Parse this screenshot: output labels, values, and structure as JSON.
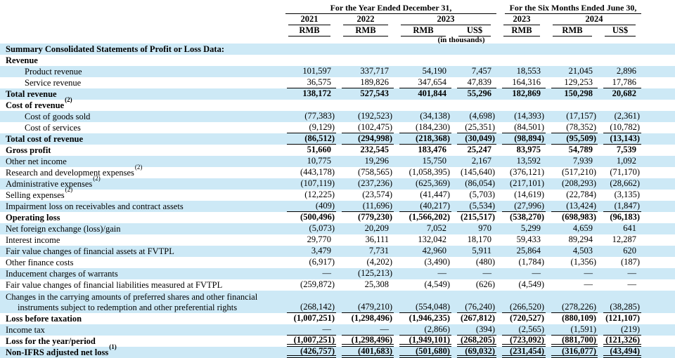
{
  "header": {
    "group1": "For the Year Ended December 31,",
    "group2": "For the Six Months Ended June 30,",
    "years": [
      "2021",
      "2022",
      "2023",
      "2023",
      "2024"
    ],
    "currencies": [
      "RMB",
      "RMB",
      "RMB",
      "US$",
      "RMB",
      "RMB",
      "US$"
    ],
    "units_note": "(in thousands)"
  },
  "colors": {
    "row_highlight": "#cde9f6",
    "rule_line": "#000000",
    "text": "#000000"
  },
  "rows": [
    {
      "label": "Summary Consolidated Statements of Profit or Loss Data:",
      "bold": true,
      "bg": "blue",
      "indent": 0,
      "underline": "none",
      "values": [
        "",
        "",
        "",
        "",
        "",
        "",
        ""
      ]
    },
    {
      "label": "Revenue",
      "bold": true,
      "bg": "white",
      "indent": 0,
      "underline": "none",
      "values": [
        "",
        "",
        "",
        "",
        "",
        "",
        ""
      ]
    },
    {
      "label": "Product revenue",
      "bold": false,
      "bg": "blue",
      "indent": 1,
      "underline": "none",
      "values": [
        "101,597",
        "337,717",
        "54,190",
        "7,457",
        "18,553",
        "21,045",
        "2,896"
      ]
    },
    {
      "label": "Service revenue",
      "bold": false,
      "bg": "white",
      "indent": 1,
      "underline": "single",
      "values": [
        "36,575",
        "189,826",
        "347,654",
        "47,839",
        "164,316",
        "129,253",
        "17,786"
      ]
    },
    {
      "label": "Total revenue",
      "bold": true,
      "bg": "blue",
      "indent": 0,
      "underline": "none",
      "values": [
        "138,172",
        "527,543",
        "401,844",
        "55,296",
        "182,869",
        "150,298",
        "20,682"
      ]
    },
    {
      "label": "Cost of revenue",
      "sup": "(2)",
      "bold": true,
      "bg": "white",
      "indent": 0,
      "underline": "none",
      "values": [
        "",
        "",
        "",
        "",
        "",
        "",
        ""
      ]
    },
    {
      "label": "Cost of goods sold",
      "bold": false,
      "bg": "blue",
      "indent": 1,
      "underline": "none",
      "values": [
        "(77,383)",
        "(192,523)",
        "(34,138)",
        "(4,698)",
        "(14,393)",
        "(17,157)",
        "(2,361)"
      ]
    },
    {
      "label": "Cost of services",
      "bold": false,
      "bg": "white",
      "indent": 1,
      "underline": "single",
      "values": [
        "(9,129)",
        "(102,475)",
        "(184,230)",
        "(25,351)",
        "(84,501)",
        "(78,352)",
        "(10,782)"
      ]
    },
    {
      "label": "Total cost of revenue",
      "bold": true,
      "bg": "blue",
      "indent": 0,
      "underline": "single",
      "values": [
        "(86,512)",
        "(294,998)",
        "(218,368)",
        "(30,049)",
        "(98,894)",
        "(95,509)",
        "(13,143)"
      ]
    },
    {
      "label": "Gross profit",
      "bold": true,
      "bg": "white",
      "indent": 0,
      "underline": "none",
      "values": [
        "51,660",
        "232,545",
        "183,476",
        "25,247",
        "83,975",
        "54,789",
        "7,539"
      ]
    },
    {
      "label": "Other net income",
      "bold": false,
      "bg": "blue",
      "indent": 0,
      "underline": "none",
      "values": [
        "10,775",
        "19,296",
        "15,750",
        "2,167",
        "13,592",
        "7,939",
        "1,092"
      ]
    },
    {
      "label": "Research and development expenses",
      "sup": "(2)",
      "bold": false,
      "bg": "white",
      "indent": 0,
      "underline": "none",
      "values": [
        "(443,178)",
        "(758,565)",
        "(1,058,395)",
        "(145,640)",
        "(376,121)",
        "(517,210)",
        "(71,170)"
      ]
    },
    {
      "label": "Administrative expenses",
      "sup": "(2)",
      "bold": false,
      "bg": "blue",
      "indent": 0,
      "underline": "none",
      "values": [
        "(107,119)",
        "(237,236)",
        "(625,369)",
        "(86,054)",
        "(217,101)",
        "(208,293)",
        "(28,662)"
      ]
    },
    {
      "label": "Selling expenses",
      "sup": "(2)",
      "bold": false,
      "bg": "white",
      "indent": 0,
      "underline": "none",
      "values": [
        "(12,225)",
        "(23,574)",
        "(41,447)",
        "(5,703)",
        "(14,619)",
        "(22,784)",
        "(3,135)"
      ]
    },
    {
      "label": "Impairment loss on receivables and contract assets",
      "bold": false,
      "bg": "blue",
      "indent": 0,
      "underline": "single",
      "values": [
        "(409)",
        "(11,696)",
        "(40,217)",
        "(5,534)",
        "(27,996)",
        "(13,424)",
        "(1,847)"
      ]
    },
    {
      "label": "Operating loss",
      "bold": true,
      "bg": "white",
      "indent": 0,
      "underline": "none",
      "values": [
        "(500,496)",
        "(779,230)",
        "(1,566,202)",
        "(215,517)",
        "(538,270)",
        "(698,983)",
        "(96,183)"
      ]
    },
    {
      "label": "Net foreign exchange (loss)/gain",
      "bold": false,
      "bg": "blue",
      "indent": 0,
      "underline": "none",
      "values": [
        "(5,073)",
        "20,209",
        "7,052",
        "970",
        "5,299",
        "4,659",
        "641"
      ]
    },
    {
      "label": "Interest income",
      "bold": false,
      "bg": "white",
      "indent": 0,
      "underline": "none",
      "values": [
        "29,770",
        "36,111",
        "132,042",
        "18,170",
        "59,433",
        "89,294",
        "12,287"
      ]
    },
    {
      "label": "Fair value changes of financial assets at FVTPL",
      "bold": false,
      "bg": "blue",
      "indent": 0,
      "underline": "none",
      "values": [
        "3,479",
        "7,731",
        "42,960",
        "5,911",
        "25,864",
        "4,503",
        "620"
      ]
    },
    {
      "label": "Other finance costs",
      "bold": false,
      "bg": "white",
      "indent": 0,
      "underline": "none",
      "values": [
        "(6,917)",
        "(4,202)",
        "(3,490)",
        "(480)",
        "(1,784)",
        "(1,356)",
        "(187)"
      ]
    },
    {
      "label": "Inducement charges of warrants",
      "bold": false,
      "bg": "blue",
      "indent": 0,
      "underline": "none",
      "values": [
        "—",
        "(125,213)",
        "—",
        "—",
        "—",
        "—",
        "—"
      ]
    },
    {
      "label": "Fair value changes of financial liabilities measured at FVTPL",
      "bold": false,
      "bg": "white",
      "indent": 0,
      "underline": "none",
      "values": [
        "(259,872)",
        "25,308",
        "(4,549)",
        "(626)",
        "(4,549)",
        "—",
        "—"
      ]
    },
    {
      "label": "Changes in the carrying amounts of preferred shares and other financial",
      "label2": "instruments subject to redemption and other preferential rights",
      "bold": false,
      "bg": "blue",
      "indent": 0,
      "underline": "single",
      "values": [
        "(268,142)",
        "(479,210)",
        "(554,048)",
        "(76,240)",
        "(266,520)",
        "(278,226)",
        "(38,285)"
      ]
    },
    {
      "label": "Loss before taxation",
      "bold": true,
      "bg": "white",
      "indent": 0,
      "underline": "none",
      "values": [
        "(1,007,251)",
        "(1,298,496)",
        "(1,946,235)",
        "(267,812)",
        "(720,527)",
        "(880,109)",
        "(121,107)"
      ]
    },
    {
      "label": "Income tax",
      "bold": false,
      "bg": "blue",
      "indent": 0,
      "underline": "single",
      "values": [
        "—",
        "—",
        "(2,866)",
        "(394)",
        "(2,565)",
        "(1,591)",
        "(219)"
      ]
    },
    {
      "label": "Loss for the year/period",
      "bold": true,
      "bg": "white",
      "indent": 0,
      "underline": "double",
      "values": [
        "(1,007,251)",
        "(1,298,496)",
        "(1,949,101)",
        "(268,205)",
        "(723,092)",
        "(881,700)",
        "(121,326)"
      ]
    },
    {
      "label": "Non-IFRS adjusted net loss",
      "sup": "(1)",
      "bold": true,
      "bg": "blue",
      "indent": 0,
      "underline": "double",
      "values": [
        "(426,757)",
        "(401,683)",
        "(501,680)",
        "(69,032)",
        "(231,454)",
        "(316,077)",
        "(43,494)"
      ]
    }
  ]
}
